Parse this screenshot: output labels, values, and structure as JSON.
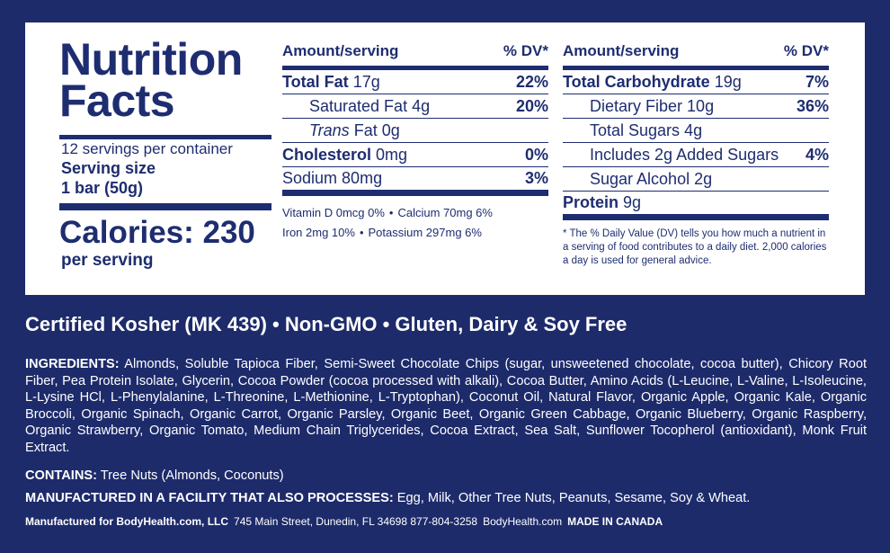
{
  "title": "Nutrition Facts",
  "servings": "12 servings per container",
  "serving_size_label": "Serving size",
  "serving_size": "1 bar (50g)",
  "calories": "Calories: 230",
  "per_serving": "per serving",
  "left_table": {
    "header": {
      "amount": "Amount/serving",
      "dv": "% DV*"
    },
    "rows": [
      {
        "label": "Total Fat",
        "amount": "17g",
        "dv": "22%",
        "bold": true
      },
      {
        "label": "Saturated Fat",
        "amount": "4g",
        "dv": "20%",
        "indent": true
      },
      {
        "label_italic": "Trans",
        "label": "Fat",
        "amount": "0g",
        "indent": true
      },
      {
        "label": "Cholesterol",
        "amount": "0mg",
        "dv": "0%",
        "bold": true
      },
      {
        "label": "Sodium",
        "amount": "80mg",
        "dv": "3%"
      }
    ],
    "vitamins": [
      [
        "Vitamin D 0mcg 0%",
        "Calcium 70mg 6%"
      ],
      [
        "Iron 2mg 10%",
        "Potassium 297mg 6%"
      ]
    ]
  },
  "right_table": {
    "header": {
      "amount": "Amount/serving",
      "dv": "% DV*"
    },
    "rows": [
      {
        "label": "Total Carbohydrate",
        "amount": "19g",
        "dv": "7%",
        "bold": true
      },
      {
        "label": "Dietary Fiber",
        "amount": "10g",
        "dv": "36%",
        "indent": true
      },
      {
        "label": "Total Sugars",
        "amount": "4g",
        "indent": true
      },
      {
        "label": "Includes 2g Added Sugars",
        "dv": "4%",
        "indent": true
      },
      {
        "label": "Sugar Alcohol",
        "amount": "2g",
        "indent": true
      },
      {
        "label": "Protein",
        "amount": "9g",
        "bold": true
      }
    ],
    "footnote": "* The % Daily Value (DV) tells you how much a nutrient in a serving of food contributes to a daily diet. 2,000 calories a day is used for general advice."
  },
  "certifications": "Certified Kosher (MK 439) • Non-GMO • Gluten, Dairy & Soy Free",
  "ingredients": {
    "label": "INGREDIENTS:",
    "text": "Almonds, Soluble Tapioca Fiber, Semi-Sweet Chocolate Chips (sugar, unsweetened chocolate, cocoa butter), Chicory Root Fiber, Pea Protein Isolate, Glycerin, Cocoa Powder (cocoa processed with alkali), Cocoa Butter, Amino Acids (L-Leucine, L-Valine, L-Isoleucine, L-Lysine HCl, L-Phenylalanine, L-Threonine, L-Methionine, L-Tryptophan), Coconut Oil, Natural Flavor, Organic Apple, Organic Kale, Organic Broccoli, Organic Spinach, Organic Carrot, Organic Parsley, Organic Beet, Organic Green Cabbage, Organic Blueberry, Organic Raspberry, Organic Strawberry, Organic Tomato, Medium Chain Triglycerides, Cocoa Extract, Sea Salt, Sunflower Tocopherol (antioxidant), Monk Fruit Extract."
  },
  "contains": {
    "label": "CONTAINS:",
    "text": "Tree Nuts (Almonds, Coconuts)"
  },
  "facility": {
    "label": "MANUFACTURED IN A FACILITY THAT ALSO PROCESSES:",
    "text": "Egg, Milk, Other Tree Nuts, Peanuts, Sesame, Soy & Wheat."
  },
  "footer": {
    "manufacturer": "Manufactured for BodyHealth.com, LLC",
    "address": "745 Main Street, Dunedin, FL 34698 877-804-3258",
    "website": "BodyHealth.com",
    "origin": "MADE IN CANADA"
  }
}
